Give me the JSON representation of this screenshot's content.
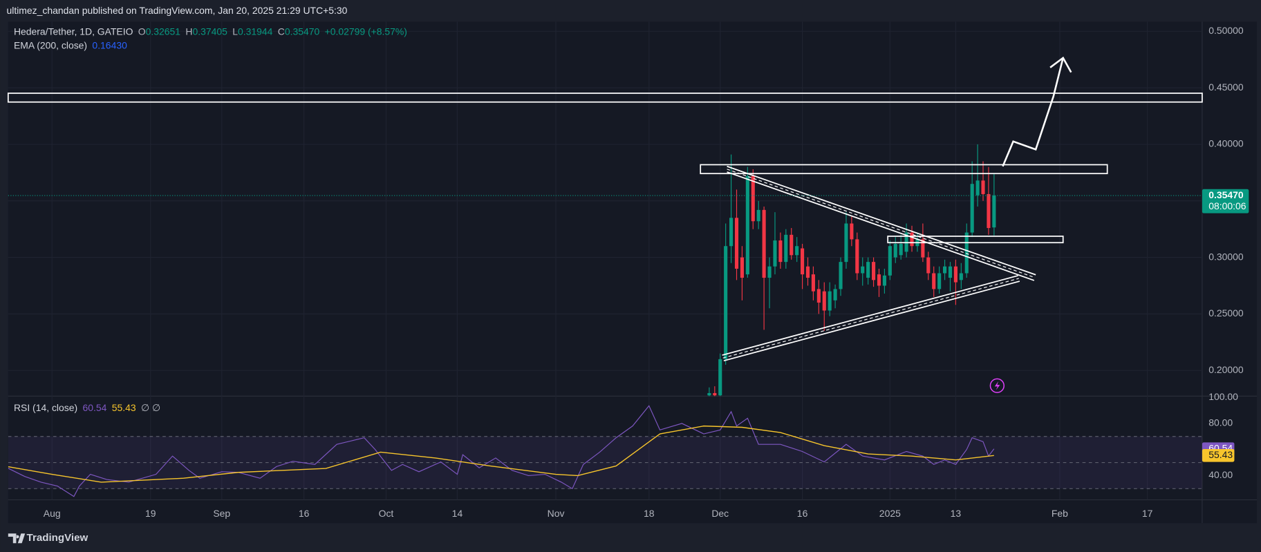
{
  "header": {
    "published": "ultimez_chandan published on TradingView.com, Jan 20, 2025 21:29 UTC+5:30"
  },
  "chart_data": [
    {
      "type": "candlestick",
      "title": "Hedera/Tether, 1D, GATEIO",
      "legend": [
        {
          "label": "O",
          "value": "0.32651"
        },
        {
          "label": "H",
          "value": "0.37405"
        },
        {
          "label": "L",
          "value": "0.31944"
        },
        {
          "label": "C",
          "value": "0.35470"
        }
      ],
      "change": "+0.02799 (+8.57%)",
      "indicator": {
        "name": "EMA (200, close)",
        "value": "0.16430",
        "color": "#2962ff"
      },
      "up_color": "#089981",
      "down_color": "#f23645",
      "x": [
        "2024-11-29",
        "2024-11-30",
        "2024-12-01",
        "2024-12-02",
        "2024-12-03",
        "2024-12-04",
        "2024-12-05",
        "2024-12-06",
        "2024-12-07",
        "2024-12-08",
        "2024-12-09",
        "2024-12-10",
        "2024-12-11",
        "2024-12-12",
        "2024-12-13",
        "2024-12-14",
        "2024-12-15",
        "2024-12-16",
        "2024-12-17",
        "2024-12-18",
        "2024-12-19",
        "2024-12-20",
        "2024-12-21",
        "2024-12-22",
        "2024-12-23",
        "2024-12-24",
        "2024-12-25",
        "2024-12-26",
        "2024-12-27",
        "2024-12-28",
        "2024-12-29",
        "2024-12-30",
        "2024-12-31",
        "2025-01-01",
        "2025-01-02",
        "2025-01-03",
        "2025-01-04",
        "2025-01-05",
        "2025-01-06",
        "2025-01-07",
        "2025-01-08",
        "2025-01-09",
        "2025-01-10",
        "2025-01-11",
        "2025-01-12",
        "2025-01-13",
        "2025-01-14",
        "2025-01-15",
        "2025-01-16",
        "2025-01-17",
        "2025-01-18",
        "2025-01-19",
        "2025-01-20"
      ],
      "open": [
        0.178,
        0.18,
        0.178,
        0.21,
        0.31,
        0.335,
        0.3,
        0.285,
        0.372,
        0.332,
        0.342,
        0.282,
        0.292,
        0.315,
        0.296,
        0.32,
        0.302,
        0.308,
        0.292,
        0.285,
        0.272,
        0.27,
        0.253,
        0.262,
        0.272,
        0.296,
        0.33,
        0.316,
        0.286,
        0.282,
        0.296,
        0.285,
        0.275,
        0.284,
        0.3,
        0.302,
        0.305,
        0.322,
        0.31,
        0.316,
        0.3,
        0.286,
        0.272,
        0.286,
        0.282,
        0.292,
        0.28,
        0.286,
        0.322,
        0.355,
        0.368,
        0.356,
        0.32651
      ],
      "high": [
        0.185,
        0.186,
        0.215,
        0.33,
        0.391,
        0.36,
        0.31,
        0.38,
        0.378,
        0.35,
        0.345,
        0.3,
        0.34,
        0.322,
        0.325,
        0.326,
        0.318,
        0.312,
        0.3,
        0.292,
        0.28,
        0.278,
        0.278,
        0.276,
        0.3,
        0.34,
        0.336,
        0.322,
        0.3,
        0.3,
        0.3,
        0.29,
        0.29,
        0.315,
        0.318,
        0.32,
        0.33,
        0.328,
        0.322,
        0.33,
        0.305,
        0.292,
        0.292,
        0.298,
        0.296,
        0.298,
        0.295,
        0.33,
        0.385,
        0.4,
        0.385,
        0.38,
        0.37405
      ],
      "low": [
        0.175,
        0.176,
        0.176,
        0.205,
        0.295,
        0.28,
        0.262,
        0.282,
        0.325,
        0.325,
        0.236,
        0.255,
        0.285,
        0.29,
        0.29,
        0.298,
        0.296,
        0.272,
        0.275,
        0.262,
        0.25,
        0.235,
        0.248,
        0.255,
        0.266,
        0.29,
        0.31,
        0.28,
        0.275,
        0.276,
        0.274,
        0.265,
        0.268,
        0.28,
        0.295,
        0.298,
        0.3,
        0.305,
        0.305,
        0.296,
        0.28,
        0.265,
        0.268,
        0.28,
        0.27,
        0.258,
        0.272,
        0.282,
        0.318,
        0.345,
        0.35,
        0.32,
        0.31944
      ],
      "close": [
        0.18,
        0.178,
        0.21,
        0.31,
        0.335,
        0.29,
        0.282,
        0.372,
        0.332,
        0.342,
        0.282,
        0.292,
        0.315,
        0.296,
        0.32,
        0.302,
        0.31,
        0.285,
        0.282,
        0.27,
        0.26,
        0.253,
        0.27,
        0.272,
        0.296,
        0.33,
        0.316,
        0.286,
        0.292,
        0.296,
        0.28,
        0.275,
        0.284,
        0.31,
        0.312,
        0.312,
        0.322,
        0.31,
        0.316,
        0.3,
        0.286,
        0.272,
        0.286,
        0.292,
        0.292,
        0.278,
        0.286,
        0.322,
        0.365,
        0.368,
        0.356,
        0.326,
        0.3547
      ],
      "last_price": {
        "label": "0.35470",
        "countdown": "08:00:06"
      },
      "xlim": [
        "2024-07-24",
        "2025-02-27"
      ],
      "xticks": [
        {
          "value": "2024-08-01",
          "label": "Aug"
        },
        {
          "value": "2024-08-19",
          "label": "19"
        },
        {
          "value": "2024-09-01",
          "label": "Sep"
        },
        {
          "value": "2024-09-16",
          "label": "16"
        },
        {
          "value": "2024-10-01",
          "label": "Oct"
        },
        {
          "value": "2024-10-14",
          "label": "14"
        },
        {
          "value": "2024-11-01",
          "label": "Nov"
        },
        {
          "value": "2024-11-18",
          "label": "18"
        },
        {
          "value": "2024-12-01",
          "label": "Dec"
        },
        {
          "value": "2024-12-16",
          "label": "16"
        },
        {
          "value": "2025-01-01",
          "label": "2025"
        },
        {
          "value": "2025-01-13",
          "label": "13"
        },
        {
          "value": "2025-02-01",
          "label": "Feb"
        },
        {
          "value": "2025-02-17",
          "label": "17"
        }
      ],
      "ylim": [
        0.1773,
        0.5085
      ],
      "yticks": [
        {
          "value": 0.2,
          "label": "0.20000"
        },
        {
          "value": 0.25,
          "label": "0.25000"
        },
        {
          "value": 0.3,
          "label": "0.30000"
        },
        {
          "value": 0.35,
          "label": "0.35000"
        },
        {
          "value": 0.4,
          "label": "0.40000"
        },
        {
          "value": 0.45,
          "label": "0.45000"
        },
        {
          "value": 0.5,
          "label": "0.50000"
        }
      ],
      "grid": true
    },
    {
      "type": "line",
      "title": "RSI (14, close)",
      "legend_suffix": "∅ ∅",
      "series": [
        {
          "color": "#7e57c2",
          "x": [
            "2024-07-24",
            "2024-07-27",
            "2024-07-30",
            "2024-08-02",
            "2024-08-05",
            "2024-08-06",
            "2024-08-08",
            "2024-08-11",
            "2024-08-15",
            "2024-08-20",
            "2024-08-23",
            "2024-08-26",
            "2024-08-28",
            "2024-09-01",
            "2024-09-04",
            "2024-09-08",
            "2024-09-11",
            "2024-09-14",
            "2024-09-18",
            "2024-09-22",
            "2024-09-25",
            "2024-09-27",
            "2024-09-29",
            "2024-10-02",
            "2024-10-04",
            "2024-10-07",
            "2024-10-11",
            "2024-10-14",
            "2024-10-15",
            "2024-10-18",
            "2024-10-21",
            "2024-10-24",
            "2024-10-27",
            "2024-10-30",
            "2024-11-02",
            "2024-11-04",
            "2024-11-06",
            "2024-11-09",
            "2024-11-12",
            "2024-11-15",
            "2024-11-18",
            "2024-11-20",
            "2024-11-24",
            "2024-11-28",
            "2024-12-01",
            "2024-12-03",
            "2024-12-04",
            "2024-12-06",
            "2024-12-08",
            "2024-12-12",
            "2024-12-16",
            "2024-12-20",
            "2024-12-24",
            "2024-12-27",
            "2024-12-31",
            "2025-01-04",
            "2025-01-07",
            "2025-01-09",
            "2025-01-11",
            "2025-01-13",
            "2025-01-15",
            "2025-01-16",
            "2025-01-18",
            "2025-01-19",
            "2025-01-20"
          ],
          "values": [
            45.6,
            39.4,
            35,
            32,
            24,
            32,
            41,
            37,
            35,
            41,
            55,
            44,
            38,
            43,
            42.5,
            38,
            47,
            51,
            48.6,
            64,
            67,
            69,
            60,
            44,
            48.6,
            43,
            50.5,
            41,
            56,
            46,
            53.5,
            44,
            40,
            41,
            35,
            30,
            48.6,
            58,
            69,
            78,
            93.5,
            75,
            80,
            72,
            75,
            89,
            78,
            84,
            64,
            64,
            58.5,
            50.5,
            64,
            55,
            52,
            58.5,
            55,
            48.6,
            52,
            48.6,
            60,
            69,
            66,
            55,
            60.54
          ]
        },
        {
          "color": "#f7c52c",
          "x": [
            "2024-07-24",
            "2024-08-01",
            "2024-08-10",
            "2024-08-25",
            "2024-09-04",
            "2024-09-20",
            "2024-09-30",
            "2024-10-10",
            "2024-10-20",
            "2024-11-01",
            "2024-11-05",
            "2024-11-12",
            "2024-11-20",
            "2024-11-28",
            "2024-12-05",
            "2024-12-12",
            "2024-12-20",
            "2024-12-28",
            "2025-01-05",
            "2025-01-13",
            "2025-01-20"
          ],
          "values": [
            46.8,
            41,
            35,
            38,
            42.5,
            45.5,
            58,
            53.5,
            47.4,
            41,
            40,
            47.4,
            72,
            78,
            77,
            73,
            63,
            56.6,
            55,
            52,
            55.43
          ]
        }
      ],
      "levels": [
        70,
        50,
        30
      ],
      "ylim": [
        21.5,
        100.9
      ],
      "yticks": [
        {
          "value": 40,
          "label": "40.00"
        },
        {
          "value": 80,
          "label": "80.00"
        },
        {
          "value": 100,
          "label": "100.00"
        }
      ]
    }
  ],
  "footer": {
    "brand": "TradingView"
  }
}
